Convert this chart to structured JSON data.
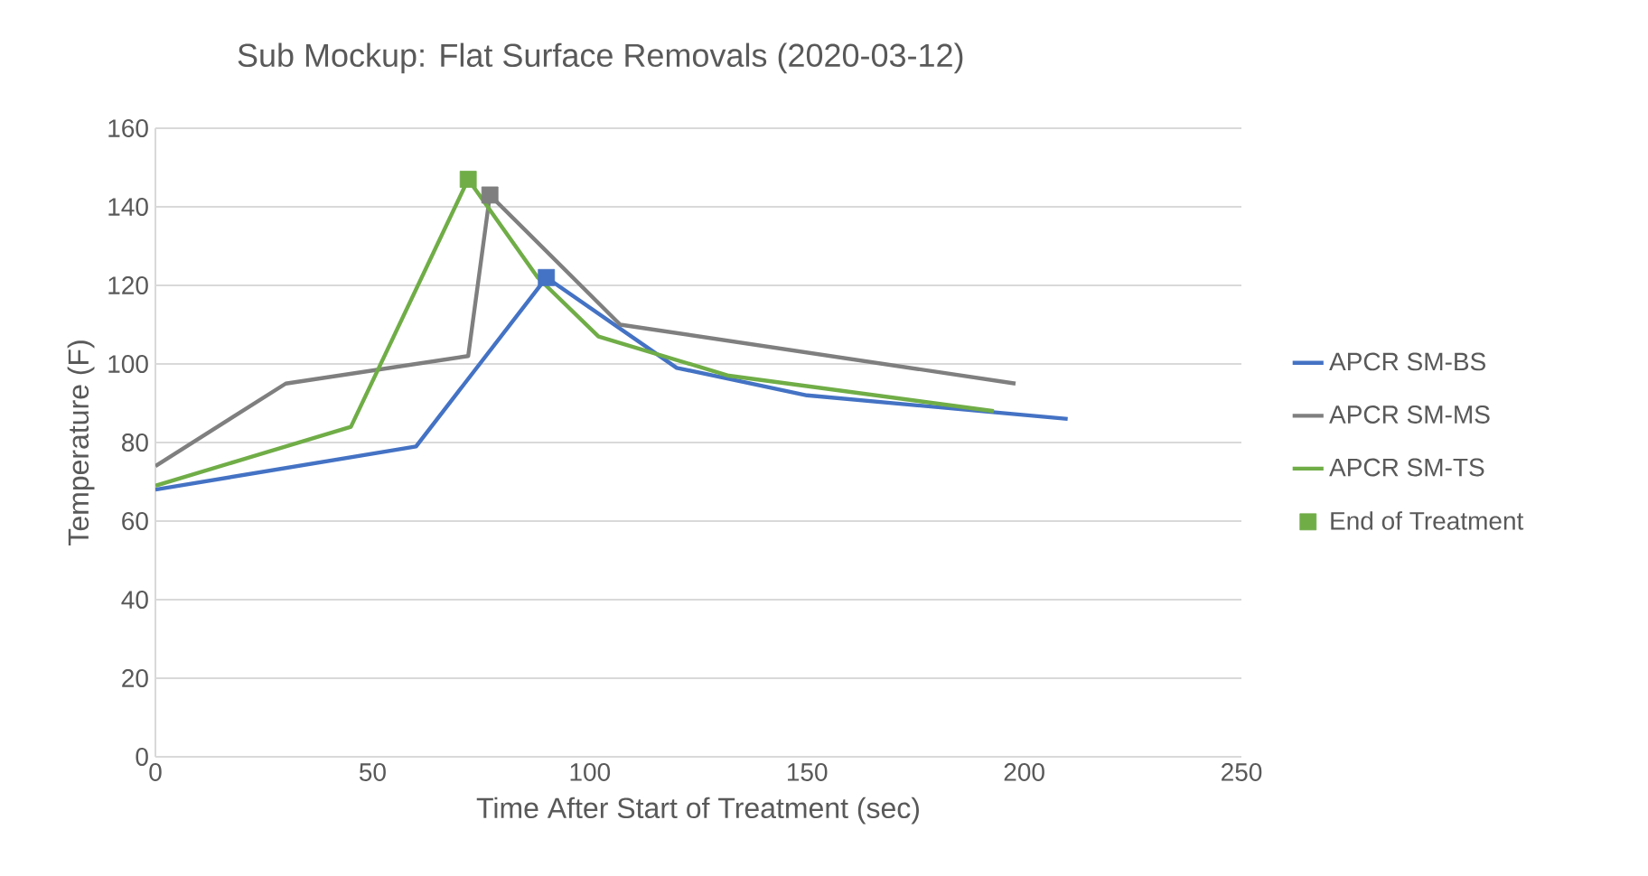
{
  "chart_data": {
    "type": "line",
    "title": "Sub Mockup: Flat Surface Removals (2020-03-12)",
    "xlabel": "Time After Start of Treatment (sec)",
    "ylabel": "Temperature (F)",
    "xlim": [
      0,
      250
    ],
    "xticks": [
      0,
      50,
      100,
      150,
      200,
      250
    ],
    "ylim": [
      0,
      160
    ],
    "yticks": [
      0,
      20,
      40,
      60,
      80,
      100,
      120,
      140,
      160
    ],
    "grid": "y",
    "legend": "right",
    "marker": "none",
    "line_style": "solid",
    "series": [
      {
        "name": "APCR SM-BS",
        "color": "#4472c4",
        "x": [
          0,
          60,
          90,
          120,
          150,
          210
        ],
        "values": [
          68,
          79,
          122,
          99,
          92,
          86
        ]
      },
      {
        "name": "APCR SM-MS",
        "color": "#7f7f7f",
        "x": [
          0,
          30,
          72,
          77,
          107,
          198
        ],
        "values": [
          74,
          95,
          102,
          143,
          110,
          95
        ]
      },
      {
        "name": "APCR SM-TS",
        "color": "#70ad47",
        "x": [
          0,
          45,
          72,
          88,
          102,
          132,
          193
        ],
        "values": [
          69,
          84,
          147,
          122,
          107,
          97,
          88
        ]
      },
      {
        "name": "End of Treatment",
        "type": "scatter",
        "marker": "square",
        "x": [
          72,
          77,
          90
        ],
        "values": [
          147,
          143,
          122
        ],
        "colors": [
          "#70ad47",
          "#7f7f7f",
          "#4472c4"
        ]
      }
    ]
  }
}
